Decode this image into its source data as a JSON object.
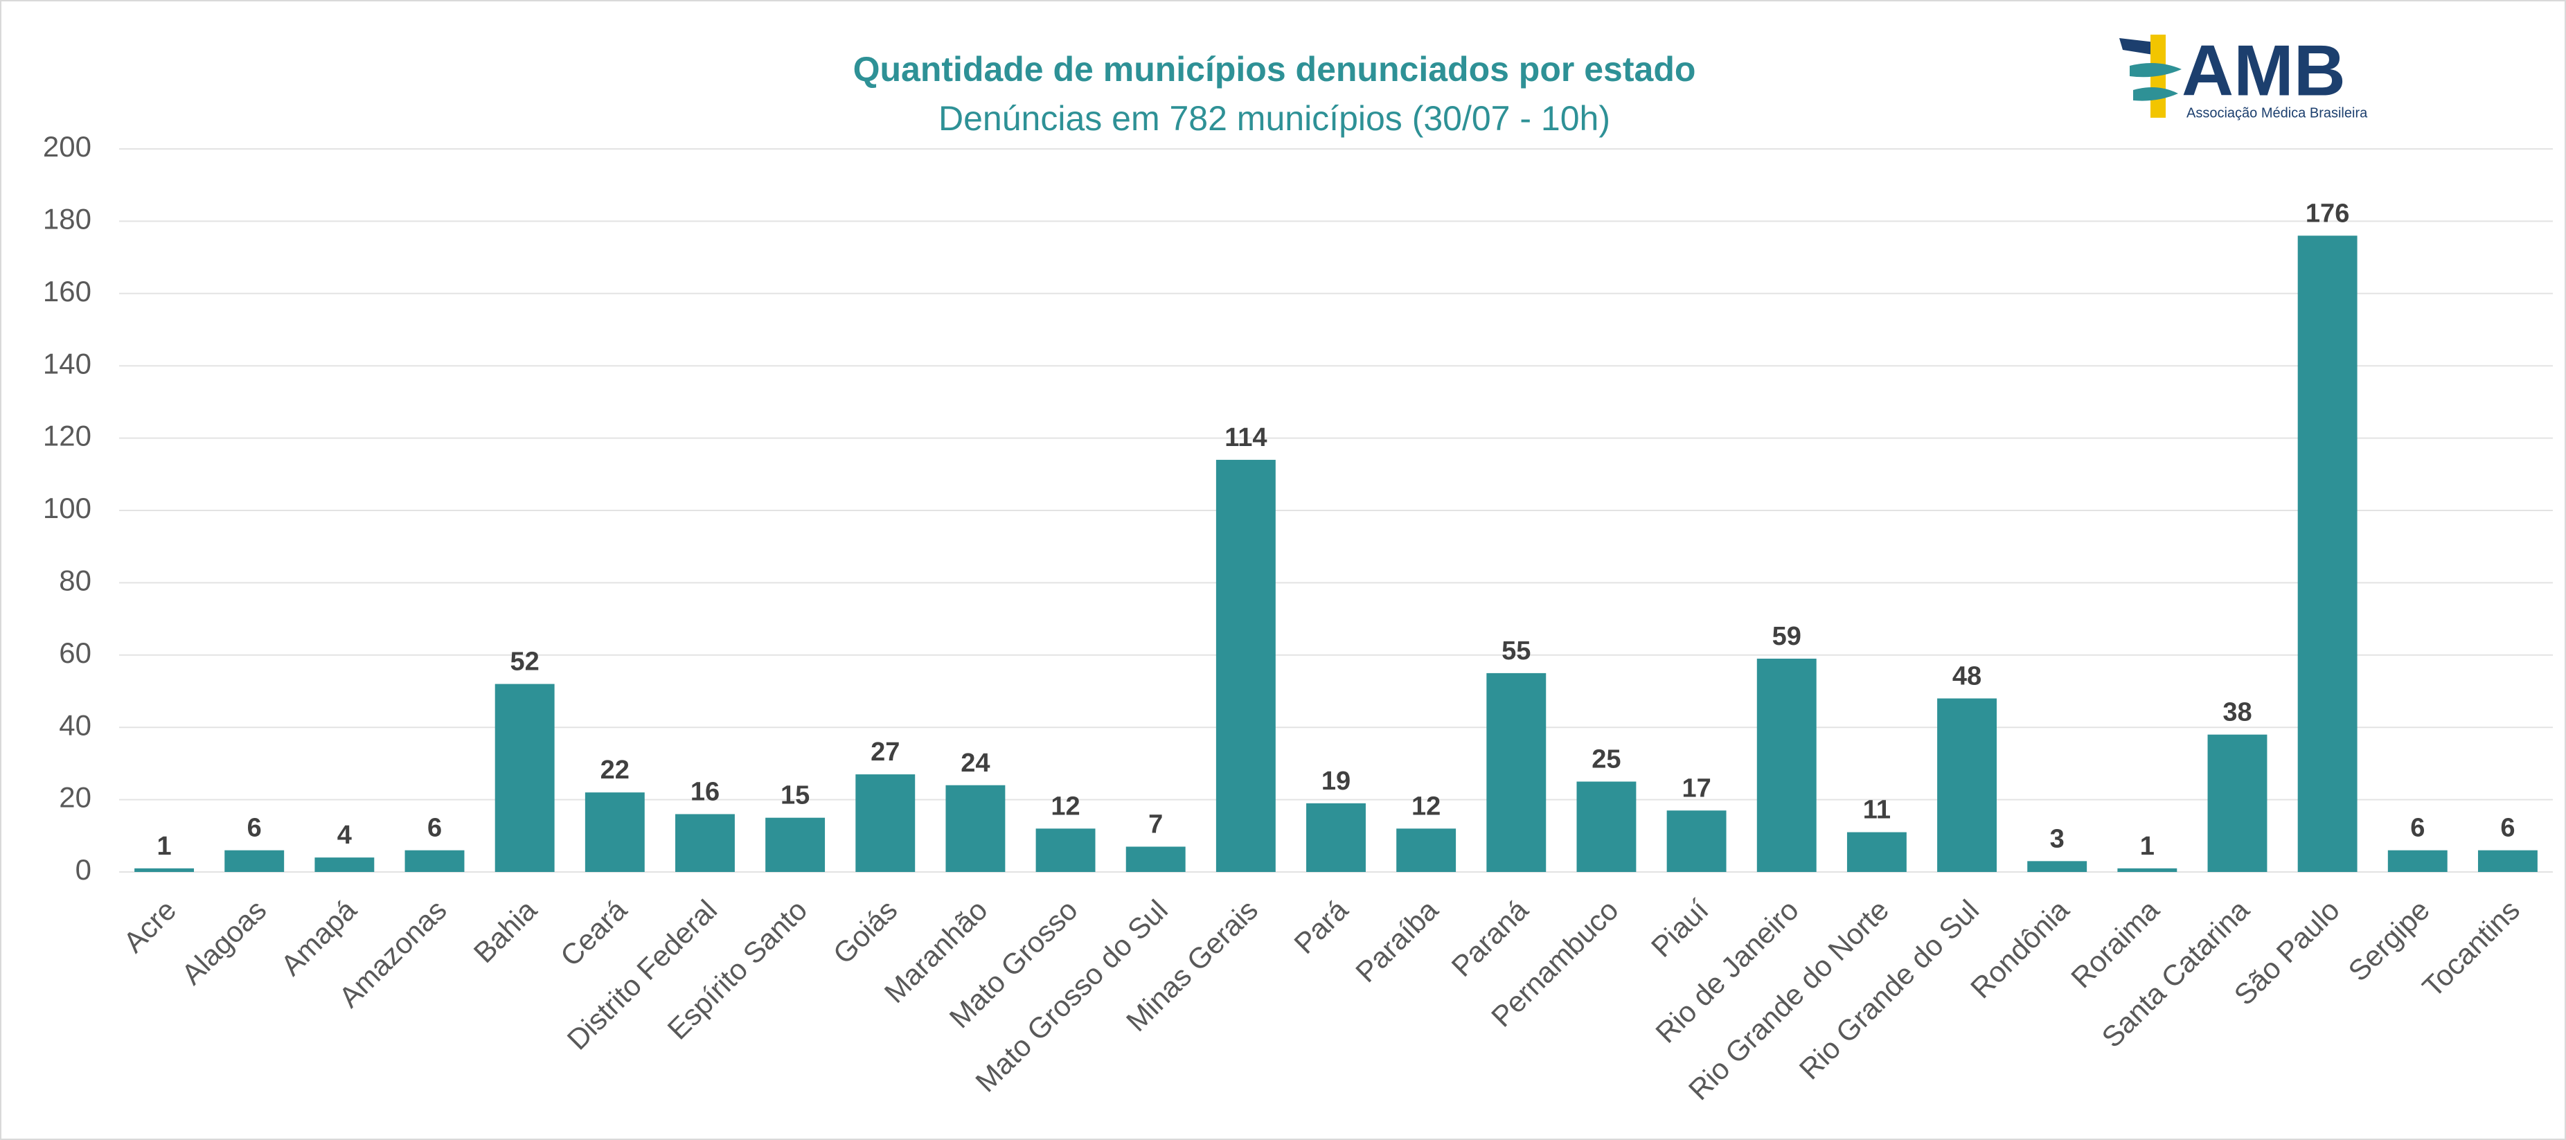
{
  "chart_data": {
    "type": "bar",
    "title": "Quantidade de municípios denunciados por estado",
    "subtitle": "Denúncias em 782 municípios (30/07 - 10h)",
    "categories": [
      "Acre",
      "Alagoas",
      "Amapá",
      "Amazonas",
      "Bahia",
      "Ceará",
      "Distrito Federal",
      "Espírito Santo",
      "Goiás",
      "Maranhão",
      "Mato Grosso",
      "Mato Grosso do Sul",
      "Minas Gerais",
      "Pará",
      "Paraíba",
      "Paraná",
      "Pernambuco",
      "Piauí",
      "Rio de Janeiro",
      "Rio Grande do Norte",
      "Rio Grande do Sul",
      "Rondônia",
      "Roraima",
      "Santa Catarina",
      "São Paulo",
      "Sergipe",
      "Tocantins"
    ],
    "values": [
      1,
      6,
      4,
      6,
      52,
      22,
      16,
      15,
      27,
      24,
      12,
      7,
      114,
      19,
      12,
      55,
      25,
      17,
      59,
      11,
      48,
      3,
      1,
      38,
      176,
      6,
      6
    ],
    "color": "#2e9196",
    "ylim": [
      0,
      200
    ],
    "yticks": [
      0,
      20,
      40,
      60,
      80,
      100,
      120,
      140,
      160,
      180,
      200
    ],
    "grid": true
  },
  "logo": {
    "name": "AMB",
    "caption": "Associação Médica Brasileira"
  }
}
